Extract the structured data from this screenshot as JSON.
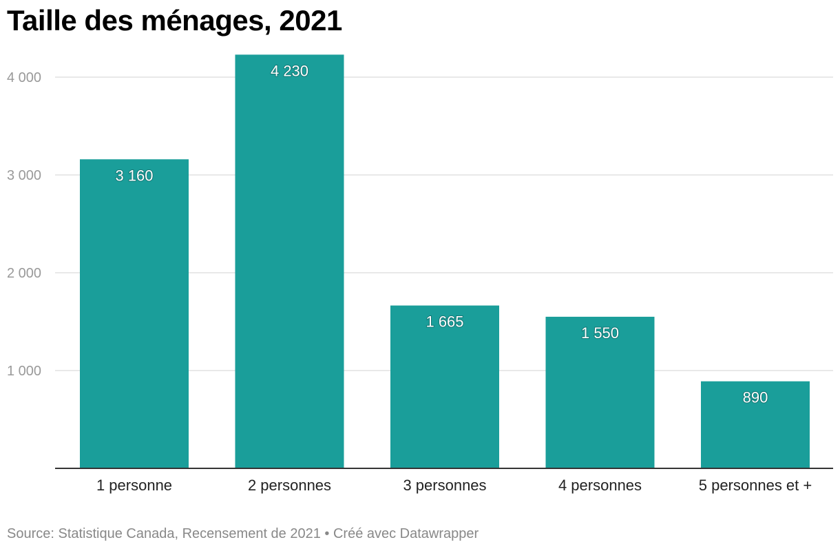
{
  "title": "Taille des ménages, 2021",
  "footer": "Source: Statistique Canada, Recensement de 2021 • Créé avec Datawrapper",
  "colors": {
    "bar": "#1a9e9a",
    "grid": "#e0e0e0",
    "axis": "#333333",
    "tick": "#999999"
  },
  "chart_data": {
    "type": "bar",
    "categories": [
      "1 personne",
      "2 personnes",
      "3 personnes",
      "4 personnes",
      "5 personnes et +"
    ],
    "values": [
      3160,
      4230,
      1665,
      1550,
      890
    ],
    "value_labels": [
      "3 160",
      "4 230",
      "1 665",
      "1 550",
      "890"
    ],
    "ylim": [
      0,
      4000
    ],
    "yticks": [
      1000,
      2000,
      3000,
      4000
    ],
    "ytick_labels": [
      "1 000",
      "2 000",
      "3 000",
      "4 000"
    ],
    "xlabel": "",
    "ylabel": "",
    "grid": true,
    "legend": "none"
  }
}
